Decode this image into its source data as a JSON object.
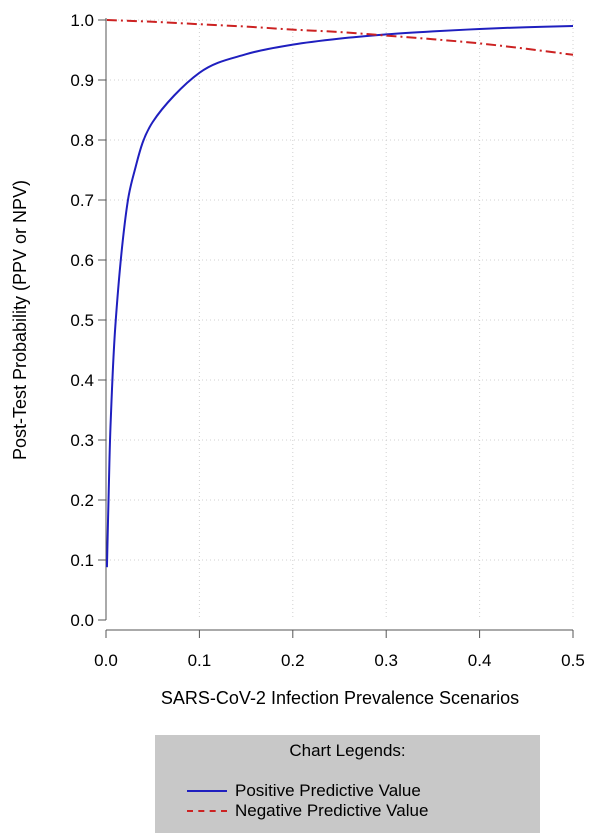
{
  "chart_data": {
    "type": "line",
    "title": "",
    "xlabel": "SARS-CoV-2 Infection Prevalence Scenarios",
    "ylabel": "Post-Test Probability (PPV or NPV)",
    "xlim": [
      0,
      0.5
    ],
    "ylim": [
      0,
      1.0
    ],
    "x_ticks": [
      "0.0",
      "0.1",
      "0.2",
      "0.3",
      "0.4",
      "0.5"
    ],
    "y_ticks": [
      "0.0",
      "0.1",
      "0.2",
      "0.3",
      "0.4",
      "0.5",
      "0.6",
      "0.7",
      "0.8",
      "0.9",
      "1.0"
    ],
    "grid": true,
    "legend_placement": "bottom",
    "legend_title": "Chart Legends:",
    "series": [
      {
        "name": "Positive Predictive Value",
        "color": "#1f1fbf",
        "style": "solid",
        "x": [
          0.001,
          0.003,
          0.005,
          0.01,
          0.02,
          0.03,
          0.05,
          0.1,
          0.15,
          0.2,
          0.25,
          0.3,
          0.35,
          0.4,
          0.45,
          0.5
        ],
        "y": [
          0.088,
          0.22,
          0.33,
          0.49,
          0.66,
          0.745,
          0.83,
          0.912,
          0.943,
          0.959,
          0.969,
          0.976,
          0.981,
          0.985,
          0.988,
          0.99
        ]
      },
      {
        "name": "Negative Predictive Value",
        "color": "#cc2222",
        "style": "dashdot",
        "x": [
          0.001,
          0.05,
          0.1,
          0.15,
          0.2,
          0.25,
          0.3,
          0.35,
          0.4,
          0.45,
          0.5
        ],
        "y": [
          1.0,
          0.997,
          0.993,
          0.989,
          0.984,
          0.98,
          0.974,
          0.968,
          0.961,
          0.952,
          0.942
        ]
      }
    ]
  }
}
